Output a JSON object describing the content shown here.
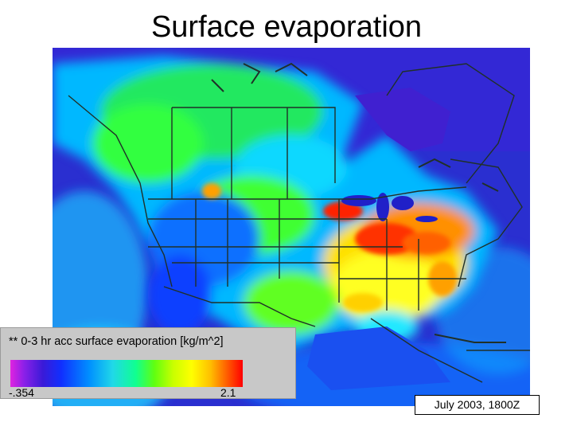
{
  "title": "Surface evaporation",
  "legend": {
    "label": "** 0-3 hr acc surface evaporation [kg/m^2]",
    "min": "-.354",
    "max": "2.1",
    "colors": [
      "#e022e0",
      "#3a1ad8",
      "#1030ff",
      "#0090ff",
      "#20d8e8",
      "#10ff90",
      "#60ff10",
      "#ffff00",
      "#ff6000",
      "#ff0000"
    ]
  },
  "timestamp": "July 2003, 1800Z"
}
